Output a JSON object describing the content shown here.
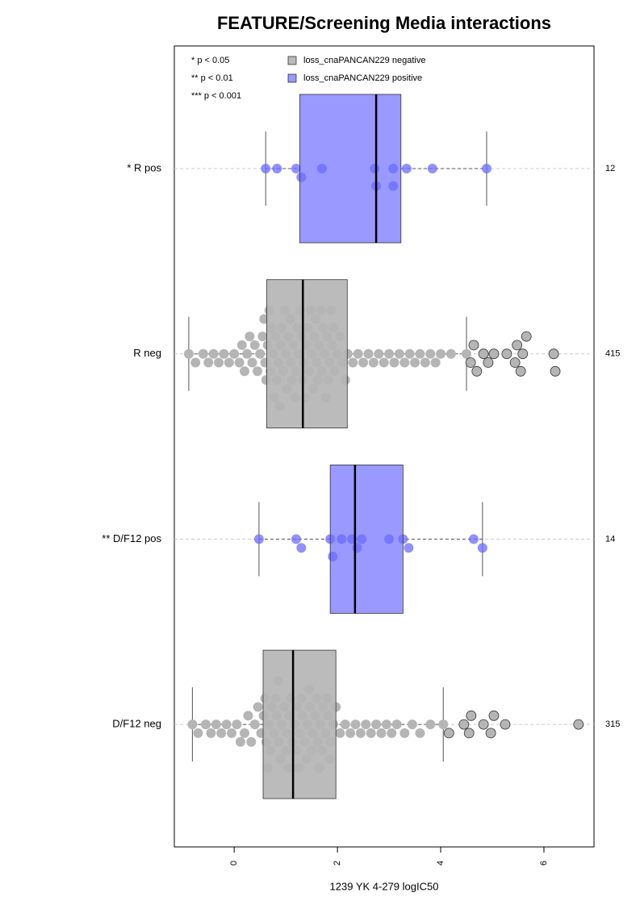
{
  "chart_data": {
    "type": "boxplot",
    "title": "FEATURE/Screening Media interactions",
    "x_label": "1239 YK 4-279 logIC50",
    "xlim": [
      -1.16,
      6.97
    ],
    "xticks": [
      0,
      2,
      4,
      6
    ],
    "significance": [
      "* p < 0.05",
      "** p < 0.01",
      "*** p < 0.001"
    ],
    "legend": [
      {
        "name": "loss_cnaPANCAN229 negative",
        "color": "#bbbbbb"
      },
      {
        "name": "loss_cnaPANCAN229 positive",
        "color": "#9999ff"
      }
    ],
    "groups": [
      {
        "label": "* R pos",
        "n": 12,
        "box_color": "#9999ff",
        "point_color": "#6b6bff",
        "whisker_low": 0.61,
        "q1": 1.27,
        "median": 2.75,
        "q3": 3.23,
        "whisker_high": 4.89,
        "points": [
          0.61,
          0.83,
          1.2,
          1.3,
          1.7,
          2.72,
          2.75,
          3.08,
          3.08,
          3.34,
          3.84,
          4.89
        ]
      },
      {
        "label": "R neg",
        "n": 415,
        "box_color": "#bbbbbb",
        "point_color": "#b5b5b5",
        "whisker_low": -0.88,
        "q1": 0.63,
        "median": 1.33,
        "q3": 2.19,
        "whisker_high": 4.5,
        "points": [
          -0.88,
          -0.75,
          -0.6,
          -0.5,
          -0.4,
          -0.3,
          -0.2,
          -0.1,
          0,
          0.1,
          0.15,
          0.2,
          0.25,
          0.3,
          0.35,
          0.4,
          0.45,
          0.5,
          0.55,
          0.6,
          0.65,
          0.7,
          0.75,
          0.8,
          0.85,
          0.9,
          0.95,
          1.0,
          1.05,
          1.1,
          1.15,
          1.2,
          1.25,
          1.3,
          1.35,
          1.4,
          1.45,
          1.5,
          1.55,
          1.6,
          1.65,
          1.7,
          1.75,
          1.8,
          1.85,
          1.9,
          1.95,
          2.0,
          2.1,
          2.2,
          2.3,
          2.4,
          2.5,
          2.6,
          2.7,
          2.8,
          2.9,
          3.0,
          3.1,
          3.2,
          3.3,
          3.4,
          3.5,
          3.6,
          3.7,
          3.8,
          3.9,
          4.0,
          4.2,
          4.5,
          0.62,
          0.72,
          0.82,
          0.92,
          1.02,
          1.12,
          1.22,
          1.32,
          1.42,
          1.52,
          1.62,
          1.72,
          1.82,
          1.92,
          0.58,
          0.78,
          0.98,
          1.18,
          1.38,
          1.58,
          1.78,
          2.05,
          0.68,
          0.88,
          1.08,
          1.28,
          1.48,
          1.68,
          1.88,
          2.15
        ],
        "outliers": [
          4.58,
          4.64,
          4.7,
          4.83,
          4.92,
          5.03,
          5.28,
          5.44,
          5.48,
          5.55,
          5.59,
          5.66,
          6.19,
          6.22
        ]
      },
      {
        "label": "** D/F12 pos",
        "n": 14,
        "box_color": "#9999ff",
        "point_color": "#6b6bff",
        "whisker_low": 0.48,
        "q1": 1.86,
        "median": 2.34,
        "q3": 3.27,
        "whisker_high": 4.81,
        "points": [
          0.48,
          1.2,
          1.3,
          1.86,
          1.91,
          2.08,
          2.28,
          2.38,
          2.47,
          3.0,
          3.27,
          3.38,
          4.64,
          4.81
        ]
      },
      {
        "label": "D/F12 neg",
        "n": 315,
        "box_color": "#bbbbbb",
        "point_color": "#b5b5b5",
        "whisker_low": -0.81,
        "q1": 0.56,
        "median": 1.14,
        "q3": 1.97,
        "whisker_high": 4.05,
        "points": [
          -0.81,
          -0.7,
          -0.55,
          -0.45,
          -0.35,
          -0.25,
          -0.15,
          -0.05,
          0.05,
          0.12,
          0.2,
          0.27,
          0.33,
          0.4,
          0.46,
          0.52,
          0.57,
          0.62,
          0.67,
          0.72,
          0.77,
          0.82,
          0.87,
          0.92,
          0.97,
          1.02,
          1.07,
          1.12,
          1.17,
          1.22,
          1.27,
          1.32,
          1.37,
          1.42,
          1.47,
          1.52,
          1.57,
          1.62,
          1.67,
          1.72,
          1.77,
          1.82,
          1.87,
          1.92,
          1.97,
          2.05,
          2.15,
          2.25,
          2.35,
          2.45,
          2.55,
          2.65,
          2.75,
          2.85,
          2.95,
          3.05,
          3.15,
          3.3,
          3.45,
          3.6,
          3.8,
          4.05,
          0.6,
          0.7,
          0.8,
          0.9,
          1.0,
          1.1,
          1.2,
          1.3,
          1.4,
          1.5,
          1.6,
          1.7,
          1.8,
          0.65,
          0.85,
          1.05,
          1.25,
          1.45,
          1.65,
          1.85
        ],
        "outliers": [
          4.16,
          4.45,
          4.55,
          4.59,
          4.83,
          4.97,
          5.03,
          5.25,
          6.67
        ]
      }
    ]
  }
}
